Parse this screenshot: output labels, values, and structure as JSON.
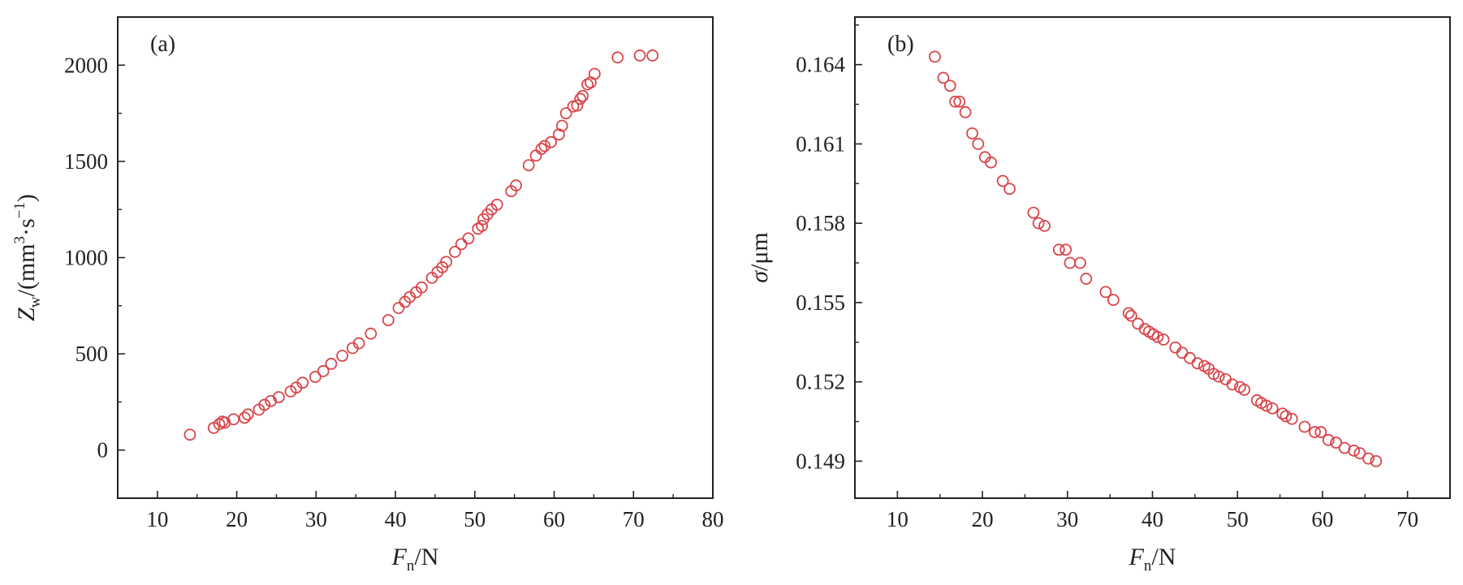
{
  "chart_data": [
    {
      "type": "scatter",
      "panel_label": "(a)",
      "xlabel": "Fn/N",
      "xlabel_parts": {
        "symbol": "F",
        "sub": "n",
        "rest": "/N"
      },
      "ylabel": "Zw/(mm3·s−1)",
      "ylabel_parts": {
        "symbol": "Z",
        "sub": "w",
        "rest1": "/(mm",
        "sup1": "3",
        "rest2": "·s",
        "sup2": "−1",
        "rest3": ")"
      },
      "xlim": [
        5,
        80
      ],
      "ylim": [
        -250,
        2250
      ],
      "xticks": [
        10,
        20,
        30,
        40,
        50,
        60,
        70,
        80
      ],
      "yticks": [
        0,
        500,
        1000,
        1500,
        2000
      ],
      "grid": false,
      "marker": "open-circle",
      "marker_color": "#d9454a",
      "x": [
        14.1,
        17.1,
        17.8,
        18.2,
        18.5,
        19.6,
        21.0,
        21.4,
        22.8,
        23.5,
        24.3,
        25.3,
        26.8,
        27.5,
        28.3,
        29.9,
        30.9,
        31.9,
        33.3,
        34.6,
        35.4,
        36.9,
        39.1,
        40.4,
        41.2,
        41.8,
        42.6,
        43.3,
        44.6,
        45.3,
        45.9,
        46.4,
        47.5,
        48.3,
        49.2,
        50.4,
        50.9,
        51.1,
        51.6,
        52.1,
        52.8,
        54.6,
        55.2,
        56.8,
        57.7,
        58.4,
        58.8,
        59.6,
        60.6,
        61.0,
        61.5,
        62.4,
        62.9,
        63.3,
        63.6,
        64.2,
        64.6,
        65.1,
        68.0,
        70.8,
        72.4
      ],
      "y": [
        80,
        115,
        135,
        148,
        142,
        160,
        168,
        185,
        210,
        235,
        255,
        275,
        305,
        325,
        350,
        380,
        410,
        448,
        490,
        530,
        555,
        605,
        675,
        738,
        770,
        795,
        820,
        845,
        895,
        925,
        950,
        978,
        1030,
        1070,
        1100,
        1150,
        1165,
        1200,
        1225,
        1250,
        1275,
        1345,
        1375,
        1480,
        1530,
        1565,
        1580,
        1600,
        1640,
        1685,
        1750,
        1785,
        1790,
        1825,
        1840,
        1900,
        1910,
        1955,
        2040,
        2050,
        2050
      ]
    },
    {
      "type": "scatter",
      "panel_label": "(b)",
      "xlabel": "Fn/N",
      "xlabel_parts": {
        "symbol": "F",
        "sub": "n",
        "rest": "/N"
      },
      "ylabel": "σ/μm",
      "ylabel_parts": {
        "symbol": "σ",
        "rest": "/μm"
      },
      "xlim": [
        5,
        75
      ],
      "ylim": [
        0.1476,
        0.1658
      ],
      "xticks": [
        10,
        20,
        30,
        40,
        50,
        60,
        70
      ],
      "yticks": [
        0.149,
        0.152,
        0.155,
        0.158,
        0.161,
        0.164
      ],
      "ytick_labels": [
        "0.149",
        "0.152",
        "0.155",
        "0.158",
        "0.161",
        "0.164"
      ],
      "grid": false,
      "marker": "open-circle",
      "marker_color": "#d9454a",
      "x": [
        14.4,
        15.4,
        16.2,
        16.8,
        17.3,
        18.0,
        18.8,
        19.5,
        20.3,
        21.0,
        22.4,
        23.2,
        26.0,
        26.6,
        27.3,
        29.0,
        29.8,
        30.3,
        31.5,
        32.2,
        34.5,
        35.4,
        37.2,
        37.5,
        38.3,
        39.1,
        39.6,
        40.1,
        40.6,
        41.3,
        42.7,
        43.5,
        44.4,
        45.3,
        46.1,
        46.6,
        47.2,
        47.8,
        48.6,
        49.4,
        50.3,
        50.8,
        52.3,
        52.8,
        53.4,
        54.1,
        55.3,
        55.7,
        56.4,
        57.9,
        59.1,
        59.8,
        60.7,
        61.6,
        62.6,
        63.7,
        64.4,
        65.4,
        66.3
      ],
      "y": [
        0.1643,
        0.1635,
        0.1632,
        0.1626,
        0.1626,
        0.1622,
        0.1614,
        0.161,
        0.1605,
        0.1603,
        0.1596,
        0.1593,
        0.1584,
        0.158,
        0.1579,
        0.157,
        0.157,
        0.1565,
        0.1565,
        0.1559,
        0.1554,
        0.1551,
        0.1546,
        0.1545,
        0.1542,
        0.154,
        0.1539,
        0.1538,
        0.1537,
        0.1536,
        0.1533,
        0.1531,
        0.1529,
        0.1527,
        0.1526,
        0.1525,
        0.1523,
        0.1522,
        0.1521,
        0.1519,
        0.1518,
        0.1517,
        0.1513,
        0.1512,
        0.1511,
        0.151,
        0.1508,
        0.1507,
        0.1506,
        0.1503,
        0.1501,
        0.1501,
        0.1498,
        0.1497,
        0.1495,
        0.1494,
        0.1493,
        0.1491,
        0.149
      ]
    }
  ]
}
